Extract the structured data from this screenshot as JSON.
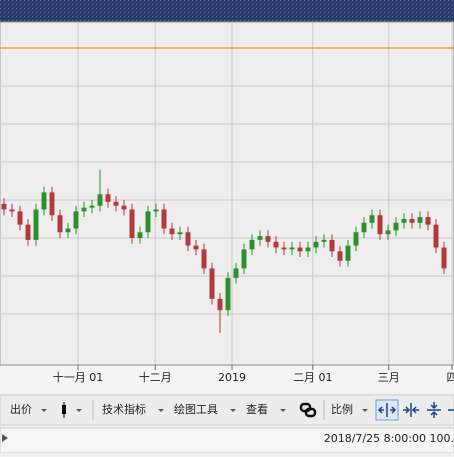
{
  "chart_data": {
    "type": "candlestick",
    "open": [
      101.8,
      101.5,
      101.4,
      100.7,
      99.9,
      101.5,
      102.4,
      101.2,
      100.3,
      100.5,
      101.4,
      101.6,
      101.7,
      102.3,
      101.9,
      101.7,
      101.5,
      100.0,
      100.3,
      101.4,
      101.5,
      100.5,
      100.2,
      100.3,
      99.6,
      99.4,
      98.4,
      96.8,
      96.2,
      97.9,
      98.4,
      99.4,
      99.9,
      100.1,
      99.8,
      99.5,
      99.4,
      99.5,
      99.3,
      99.5,
      99.8,
      99.9,
      99.3,
      98.8,
      99.6,
      100.3,
      100.8,
      101.2,
      100.2,
      100.4,
      100.8,
      101.0,
      100.8,
      101.1,
      100.7,
      99.5
    ],
    "high": [
      102.1,
      101.8,
      101.7,
      101.0,
      101.8,
      102.7,
      102.7,
      101.5,
      100.8,
      101.7,
      101.9,
      102.0,
      103.6,
      102.6,
      102.2,
      102.0,
      101.8,
      100.6,
      101.7,
      101.8,
      101.8,
      100.8,
      100.6,
      100.6,
      99.9,
      99.7,
      98.7,
      97.1,
      98.2,
      98.7,
      99.7,
      100.2,
      100.4,
      100.4,
      100.1,
      99.8,
      99.8,
      99.8,
      99.8,
      100.1,
      100.2,
      100.2,
      99.6,
      99.9,
      100.6,
      101.1,
      101.5,
      101.5,
      100.7,
      101.1,
      101.3,
      101.3,
      101.4,
      101.4,
      101.0,
      99.8
    ],
    "low": [
      101.2,
      101.1,
      100.4,
      99.6,
      99.6,
      101.2,
      100.9,
      100.0,
      100.0,
      100.2,
      101.1,
      101.3,
      101.4,
      101.6,
      101.4,
      101.2,
      99.7,
      99.7,
      100.0,
      101.1,
      100.2,
      99.9,
      99.9,
      99.3,
      99.1,
      98.1,
      96.5,
      95.0,
      95.9,
      97.6,
      98.1,
      99.1,
      99.6,
      99.5,
      99.2,
      99.1,
      99.1,
      99.0,
      99.0,
      99.2,
      99.5,
      99.0,
      98.5,
      98.5,
      99.3,
      100.0,
      100.5,
      99.9,
      99.9,
      100.1,
      100.5,
      100.5,
      100.5,
      100.4,
      99.2,
      98.1
    ],
    "close": [
      101.5,
      101.4,
      100.7,
      99.9,
      101.5,
      102.4,
      101.2,
      100.3,
      100.5,
      101.4,
      101.6,
      101.7,
      102.3,
      101.9,
      101.7,
      101.5,
      100.0,
      100.3,
      101.4,
      101.5,
      100.5,
      100.2,
      100.3,
      99.6,
      99.4,
      98.4,
      96.8,
      96.2,
      97.9,
      98.4,
      99.4,
      99.9,
      100.1,
      99.8,
      99.5,
      99.4,
      99.5,
      99.3,
      99.5,
      99.8,
      99.9,
      99.3,
      98.8,
      99.6,
      100.3,
      100.8,
      101.2,
      100.2,
      100.4,
      100.8,
      101.0,
      100.8,
      101.1,
      100.7,
      99.5,
      98.4
    ],
    "up_color": "#2f8f2f",
    "down_color": "#b23a3a",
    "reference_line": 110,
    "reference_color": "#e0892c",
    "xlim": [
      -0.5,
      56.25
    ],
    "ylim": [
      94,
      112
    ],
    "yticks": [
      96,
      98,
      100,
      102,
      104,
      106,
      108
    ],
    "xticks": [
      {
        "value": 9.25,
        "label": "十一月 01"
      },
      {
        "value": 18.9,
        "label": "十二月"
      },
      {
        "value": 28.5,
        "label": "2019"
      },
      {
        "value": 38.6,
        "label": "二月 01"
      },
      {
        "value": 48.1,
        "label": "三月"
      },
      {
        "value": 56,
        "label": "四"
      }
    ],
    "grid": true
  },
  "toolbar": {
    "items": [
      "出价",
      "技术指标",
      "绘图工具",
      "查看",
      "比例"
    ]
  },
  "status": {
    "text": "2018/7/25 8:00:00 100."
  }
}
